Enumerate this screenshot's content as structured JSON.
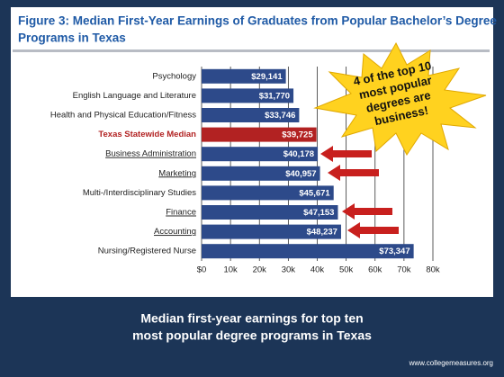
{
  "chart_data": {
    "type": "bar",
    "orientation": "horizontal",
    "title": [
      "Figure 3: Median First-Year Earnings of Graduates from Popular Bachelor’s Degree",
      "Programs in Texas"
    ],
    "categories": [
      "Psychology",
      "English Language and Literature",
      "Health and Physical Education/Fitness",
      "Texas Statewide Median",
      "Business Administration",
      "Marketing",
      "Multi-/Interdisciplinary Studies",
      "Finance",
      "Accounting",
      "Nursing/Registered Nurse"
    ],
    "values": [
      29141,
      31770,
      33746,
      39725,
      40178,
      40957,
      45671,
      47153,
      48237,
      73347
    ],
    "value_labels": [
      "$29,141",
      "$31,770",
      "$33,746",
      "$39,725",
      "$40,178",
      "$40,957",
      "$45,671",
      "$47,153",
      "$48,237",
      "$73,347"
    ],
    "colors": [
      "#2d4a8a",
      "#2d4a8a",
      "#2d4a8a",
      "#b22222",
      "#2d4a8a",
      "#2d4a8a",
      "#2d4a8a",
      "#2d4a8a",
      "#2d4a8a",
      "#2d4a8a"
    ],
    "xlim": [
      0,
      80000
    ],
    "xticks": [
      {
        "value": 0,
        "label": "$0"
      },
      {
        "value": 10000,
        "label": "10k"
      },
      {
        "value": 20000,
        "label": "20k"
      },
      {
        "value": 30000,
        "label": "30k"
      },
      {
        "value": 40000,
        "label": "40k"
      },
      {
        "value": 50000,
        "label": "50k"
      },
      {
        "value": 60000,
        "label": "60k"
      },
      {
        "value": 70000,
        "label": "70k"
      },
      {
        "value": 80000,
        "label": "80k"
      }
    ],
    "grid": true,
    "callout": [
      "4 of the top 10",
      "most popular",
      "degrees are",
      "business!"
    ],
    "caption": [
      "Median first-year earnings for top ten",
      "most popular degree programs in Texas"
    ],
    "source": "www.collegemeasures.org"
  }
}
